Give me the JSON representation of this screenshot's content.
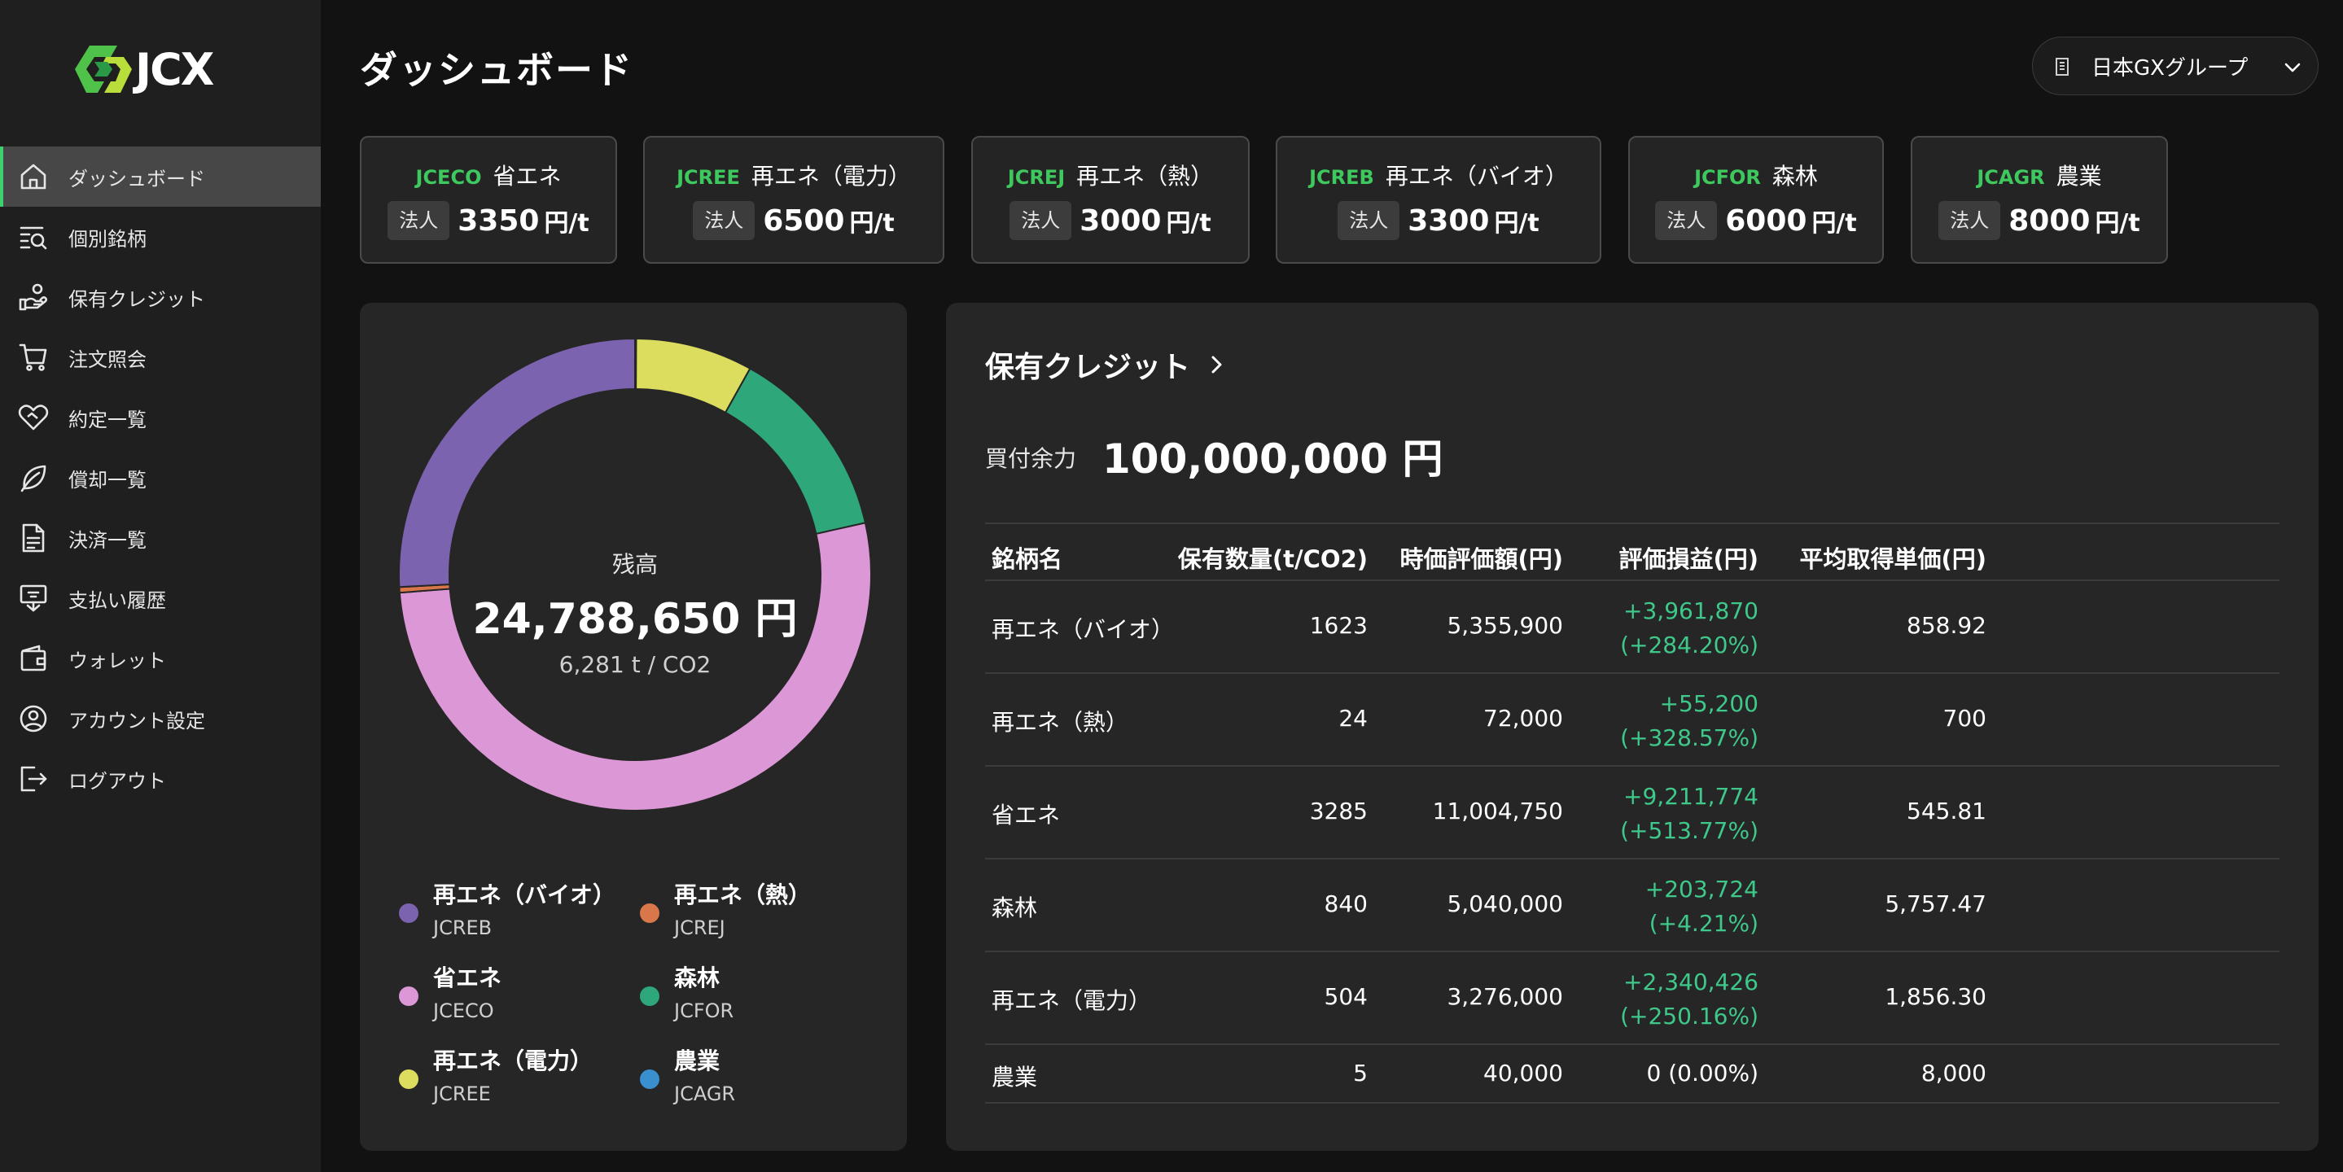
{
  "brand": {
    "name": "JCX"
  },
  "sidebar": {
    "items": [
      {
        "label": "ダッシュボード",
        "icon": "home-icon",
        "active": true
      },
      {
        "label": "個別銘柄",
        "icon": "search-list-icon"
      },
      {
        "label": "保有クレジット",
        "icon": "hand-coins-icon"
      },
      {
        "label": "注文照会",
        "icon": "cart-icon"
      },
      {
        "label": "約定一覧",
        "icon": "handshake-heart-icon"
      },
      {
        "label": "償却一覧",
        "icon": "leaf-icon"
      },
      {
        "label": "決済一覧",
        "icon": "document-icon"
      },
      {
        "label": "支払い履歴",
        "icon": "payment-history-icon"
      },
      {
        "label": "ウォレット",
        "icon": "wallet-icon"
      },
      {
        "label": "アカウント設定",
        "icon": "user-circle-icon"
      },
      {
        "label": "ログアウト",
        "icon": "logout-icon"
      }
    ]
  },
  "header": {
    "title": "ダッシュボード",
    "org_select": "日本GXグループ"
  },
  "price_cards": [
    {
      "code": "JCECO",
      "name": "省エネ",
      "tag": "法人",
      "price": "3350",
      "unit": "円/t"
    },
    {
      "code": "JCREE",
      "name": "再エネ（電力）",
      "tag": "法人",
      "price": "6500",
      "unit": "円/t"
    },
    {
      "code": "JCREJ",
      "name": "再エネ（熱）",
      "tag": "法人",
      "price": "3000",
      "unit": "円/t"
    },
    {
      "code": "JCREB",
      "name": "再エネ（バイオ）",
      "tag": "法人",
      "price": "3300",
      "unit": "円/t"
    },
    {
      "code": "JCFOR",
      "name": "森林",
      "tag": "法人",
      "price": "6000",
      "unit": "円/t"
    },
    {
      "code": "JCAGR",
      "name": "農業",
      "tag": "法人",
      "price": "8000",
      "unit": "円/t"
    }
  ],
  "balance": {
    "label": "残高",
    "amount": "24,788,650 円",
    "volume": "6,281 t / CO2"
  },
  "chart_data": {
    "type": "pie",
    "series": [
      {
        "name": "農業",
        "code": "JCAGR",
        "value": 5,
        "color": "#3a8fcf"
      },
      {
        "name": "再エネ（電力）",
        "code": "JCREE",
        "value": 504,
        "color": "#dcdc5e"
      },
      {
        "name": "森林",
        "code": "JCFOR",
        "value": 840,
        "color": "#2ea87a"
      },
      {
        "name": "省エネ",
        "code": "JCECO",
        "value": 3285,
        "color": "#dc97d6"
      },
      {
        "name": "再エネ（熱）",
        "code": "JCREJ",
        "value": 24,
        "color": "#d9774a"
      },
      {
        "name": "再エネ（バイオ）",
        "code": "JCREB",
        "value": 1623,
        "color": "#7c63b0"
      }
    ]
  },
  "legend": [
    {
      "name": "再エネ（バイオ）",
      "code": "JCREB",
      "color": "#7c63b0"
    },
    {
      "name": "再エネ（熱）",
      "code": "JCREJ",
      "color": "#d9774a"
    },
    {
      "name": "省エネ",
      "code": "JCECO",
      "color": "#dc97d6"
    },
    {
      "name": "森林",
      "code": "JCFOR",
      "color": "#2ea87a"
    },
    {
      "name": "再エネ（電力）",
      "code": "JCREE",
      "color": "#dcdc5e"
    },
    {
      "name": "農業",
      "code": "JCAGR",
      "color": "#3a8fcf"
    }
  ],
  "holdings": {
    "title": "保有クレジット",
    "buying_power_label": "買付余力",
    "buying_power": "100,000,000 円",
    "columns": [
      "銘柄名",
      "保有数量(t/CO2)",
      "時価評価額(円)",
      "評価損益(円)",
      "平均取得単価(円)"
    ],
    "rows": [
      {
        "name": "再エネ（バイオ）",
        "qty": "1623",
        "value": "5,355,900",
        "pl": "+3,961,870",
        "pl_pct": "(+284.20%)",
        "avg": "858.92"
      },
      {
        "name": "再エネ（熱）",
        "qty": "24",
        "value": "72,000",
        "pl": "+55,200",
        "pl_pct": "(+328.57%)",
        "avg": "700"
      },
      {
        "name": "省エネ",
        "qty": "3285",
        "value": "11,004,750",
        "pl": "+9,211,774",
        "pl_pct": "(+513.77%)",
        "avg": "545.81"
      },
      {
        "name": "森林",
        "qty": "840",
        "value": "5,040,000",
        "pl": "+203,724",
        "pl_pct": "(+4.21%)",
        "avg": "5,757.47"
      },
      {
        "name": "再エネ（電力）",
        "qty": "504",
        "value": "3,276,000",
        "pl": "+2,340,426",
        "pl_pct": "(+250.16%)",
        "avg": "1,856.30"
      },
      {
        "name": "農業",
        "qty": "5",
        "value": "40,000",
        "pl": "0 (0.00%)",
        "pl_pct": "",
        "avg": "8,000"
      }
    ]
  },
  "colors": {
    "accent": "#3ec95e",
    "positive": "#3ec98a",
    "background": "#121212",
    "sidebar": "#1f1f1f",
    "panel": "#262626"
  }
}
